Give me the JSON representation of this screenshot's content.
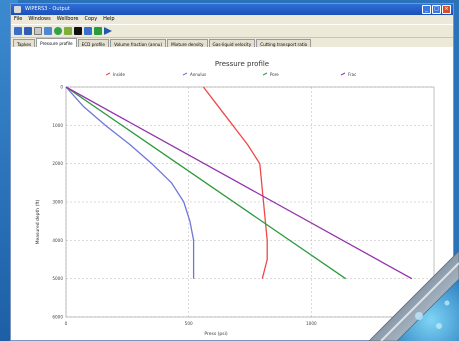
{
  "window": {
    "title": "WIPERS3 - Output"
  },
  "menu": [
    "File",
    "Windows",
    "Wellbore",
    "Copy",
    "Help"
  ],
  "toolbar": {
    "icons": [
      "open-icon",
      "save-icon",
      "print-icon",
      "copy-icon",
      "refresh-icon",
      "settings-icon",
      "stop-icon",
      "chart-icon",
      "run-icon",
      "play-icon"
    ]
  },
  "tabs": [
    "Tapkes",
    "Pressure profile",
    "ECD profile",
    "Volume fraction (annu)",
    "Mixture density",
    "Gas-liquid velocity",
    "Cutting transport ratio"
  ],
  "active_tab": 1,
  "colors": {
    "inside": "#ef4848",
    "annulus": "#6f76d8",
    "pore": "#2e9a3c",
    "frac": "#9434ad",
    "accent": "#1b4fb8"
  },
  "chart_data": {
    "type": "line",
    "title": "Pressure profile",
    "xlabel": "Press (psi)",
    "ylabel": "Measured depth (ft)",
    "xlim": [
      0,
      1500
    ],
    "ylim": [
      0,
      6000
    ],
    "y_inverted": true,
    "x_ticks": [
      "0",
      "500",
      "1000"
    ],
    "y_ticks": [
      "0",
      "1000",
      "2000",
      "3000",
      "4000",
      "5000",
      "6000"
    ],
    "grid": true,
    "legend": "top",
    "series": [
      {
        "name": "Inside",
        "color": "#ef4848",
        "x": [
          560,
          620,
          680,
          740,
          790,
          805,
          820,
          820,
          800
        ],
        "y": [
          0,
          500,
          1000,
          1500,
          2000,
          3000,
          4000,
          4500,
          5000
        ]
      },
      {
        "name": "Annulus",
        "color": "#6f76d8",
        "x": [
          0,
          70,
          160,
          260,
          350,
          430,
          480,
          505,
          520,
          520
        ],
        "y": [
          0,
          500,
          1000,
          1500,
          2000,
          2500,
          3000,
          3500,
          4000,
          5000
        ]
      },
      {
        "name": "Pore",
        "color": "#2e9a3c",
        "x": [
          0,
          1140
        ],
        "y": [
          0,
          5000
        ]
      },
      {
        "name": "Frac",
        "color": "#9434ad",
        "x": [
          0,
          1410
        ],
        "y": [
          0,
          5000
        ]
      }
    ]
  }
}
